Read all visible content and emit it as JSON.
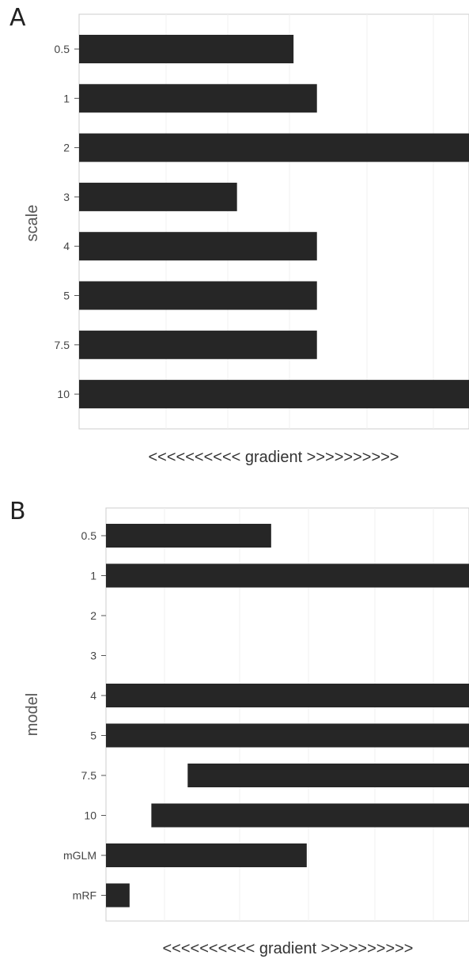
{
  "chart_data": [
    {
      "panel": "A",
      "type": "bar",
      "orientation": "horizontal",
      "xlabel": "<<<<<<<<<< gradient >>>>>>>>>>",
      "ylabel": "scale",
      "categories": [
        "0.5",
        "1",
        "2",
        "3",
        "4",
        "5",
        "7.5",
        "10"
      ],
      "bars": [
        {
          "start": 0.0,
          "end": 0.55
        },
        {
          "start": 0.0,
          "end": 0.61
        },
        {
          "start": 0.0,
          "end": 1.0
        },
        {
          "start": 0.0,
          "end": 0.405
        },
        {
          "start": 0.0,
          "end": 0.61
        },
        {
          "start": 0.0,
          "end": 0.61
        },
        {
          "start": 0.0,
          "end": 0.61
        },
        {
          "start": 0.0,
          "end": 1.0
        }
      ],
      "xlim": [
        0,
        1
      ],
      "grid": true,
      "bar_color": "#262626"
    },
    {
      "panel": "B",
      "type": "bar",
      "orientation": "horizontal",
      "xlabel": "<<<<<<<<<< gradient >>>>>>>>>>",
      "ylabel": "model",
      "categories": [
        "0.5",
        "1",
        "2",
        "3",
        "4",
        "5",
        "7.5",
        "10",
        "mGLM",
        "mRF"
      ],
      "bars": [
        {
          "start": 0.0,
          "end": 0.455
        },
        {
          "start": 0.0,
          "end": 1.0
        },
        null,
        null,
        {
          "start": 0.0,
          "end": 1.0
        },
        {
          "start": 0.0,
          "end": 1.0
        },
        {
          "start": 0.225,
          "end": 1.0
        },
        {
          "start": 0.125,
          "end": 1.0
        },
        {
          "start": 0.0,
          "end": 0.553
        },
        {
          "start": 0.0,
          "end": 0.065
        }
      ],
      "xlim": [
        0,
        1
      ],
      "grid": true,
      "bar_color": "#262626"
    }
  ]
}
